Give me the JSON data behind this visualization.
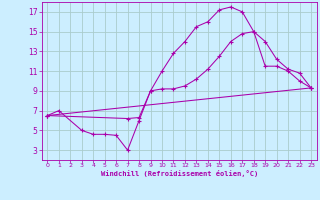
{
  "xlabel": "Windchill (Refroidissement éolien,°C)",
  "bg_color": "#cceeff",
  "grid_color": "#aacccc",
  "line_color": "#aa00aa",
  "xlim": [
    -0.5,
    23.5
  ],
  "ylim": [
    2.0,
    18.0
  ],
  "xticks": [
    0,
    1,
    2,
    3,
    4,
    5,
    6,
    7,
    8,
    9,
    10,
    11,
    12,
    13,
    14,
    15,
    16,
    17,
    18,
    19,
    20,
    21,
    22,
    23
  ],
  "yticks": [
    3,
    5,
    7,
    9,
    11,
    13,
    15,
    17
  ],
  "line1_x": [
    0,
    1,
    3,
    4,
    5,
    6,
    7,
    8,
    9,
    10,
    11,
    12,
    13,
    14,
    15,
    16,
    17,
    18,
    19,
    20,
    21,
    22,
    23
  ],
  "line1_y": [
    6.5,
    7.0,
    5.0,
    4.6,
    4.6,
    4.5,
    3.0,
    6.0,
    9.0,
    11.0,
    12.8,
    14.0,
    15.5,
    16.0,
    17.2,
    17.5,
    17.0,
    15.0,
    11.5,
    11.5,
    11.0,
    10.0,
    9.3
  ],
  "line2_x": [
    0,
    7,
    8,
    9,
    10,
    11,
    12,
    13,
    14,
    15,
    16,
    17,
    18,
    19,
    20,
    21,
    22,
    23
  ],
  "line2_y": [
    6.5,
    6.2,
    6.3,
    9.0,
    9.2,
    9.2,
    9.5,
    10.2,
    11.2,
    12.5,
    14.0,
    14.8,
    15.0,
    14.0,
    12.2,
    11.2,
    10.8,
    9.3
  ],
  "line3_x": [
    0,
    23
  ],
  "line3_y": [
    6.5,
    9.3
  ]
}
